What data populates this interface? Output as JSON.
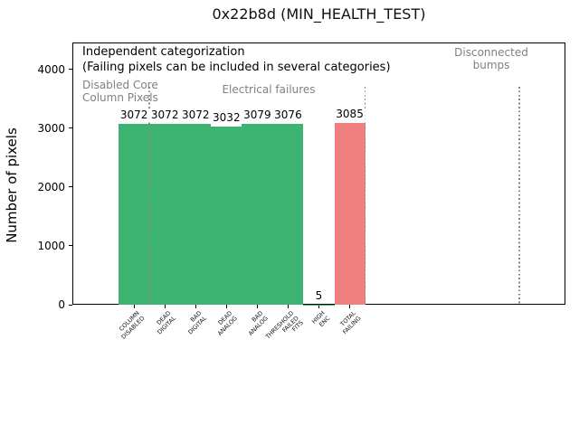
{
  "title": "0x22b8d (MIN_HEALTH_TEST)",
  "annotations": {
    "independent_line1": "Independent categorization",
    "independent_line2": "(Failing pixels can be included in several categories)",
    "disabled_core": "Disabled Core\nColumn Pixels",
    "electrical": "Electrical failures",
    "disconnected": "Disconnected\nbumps"
  },
  "colors": {
    "bar_green": "#3cb371",
    "bar_red": "#f08080",
    "annotation_gray": "#808080",
    "separator_gray": "#888888"
  },
  "chart_data": {
    "type": "bar",
    "title": "0x22b8d (MIN_HEALTH_TEST)",
    "xlabel": "",
    "ylabel": "Number of pixels",
    "ylim": [
      0,
      4460
    ],
    "xlim": [
      -2,
      14
    ],
    "yticks": [
      0,
      1000,
      2000,
      3000,
      4000
    ],
    "grid": false,
    "legend": false,
    "categories": [
      "COLUMN\nDISABLED",
      "DEAD\nDIGITAL",
      "BAD\nDIGITAL",
      "DEAD\nANALOG",
      "BAD\nANALOG",
      "THRESHOLD\nFAILED\nFITS",
      "HIGH\nENC",
      "TOTAL\nFAILING"
    ],
    "values": [
      3072,
      3072,
      3072,
      3032,
      3079,
      3076,
      5,
      3085
    ],
    "bar_colors": [
      "#3cb371",
      "#3cb371",
      "#3cb371",
      "#3cb371",
      "#3cb371",
      "#3cb371",
      "#3cb371",
      "#f08080"
    ],
    "separator_lines_x": [
      0.5,
      7.5,
      12.5
    ],
    "region_labels": [
      {
        "text": "Disabled Core\nColumn Pixels",
        "color": "#808080"
      },
      {
        "text": "Electrical failures",
        "color": "#808080"
      },
      {
        "text": "Disconnected\nbumps",
        "color": "#808080"
      }
    ]
  }
}
